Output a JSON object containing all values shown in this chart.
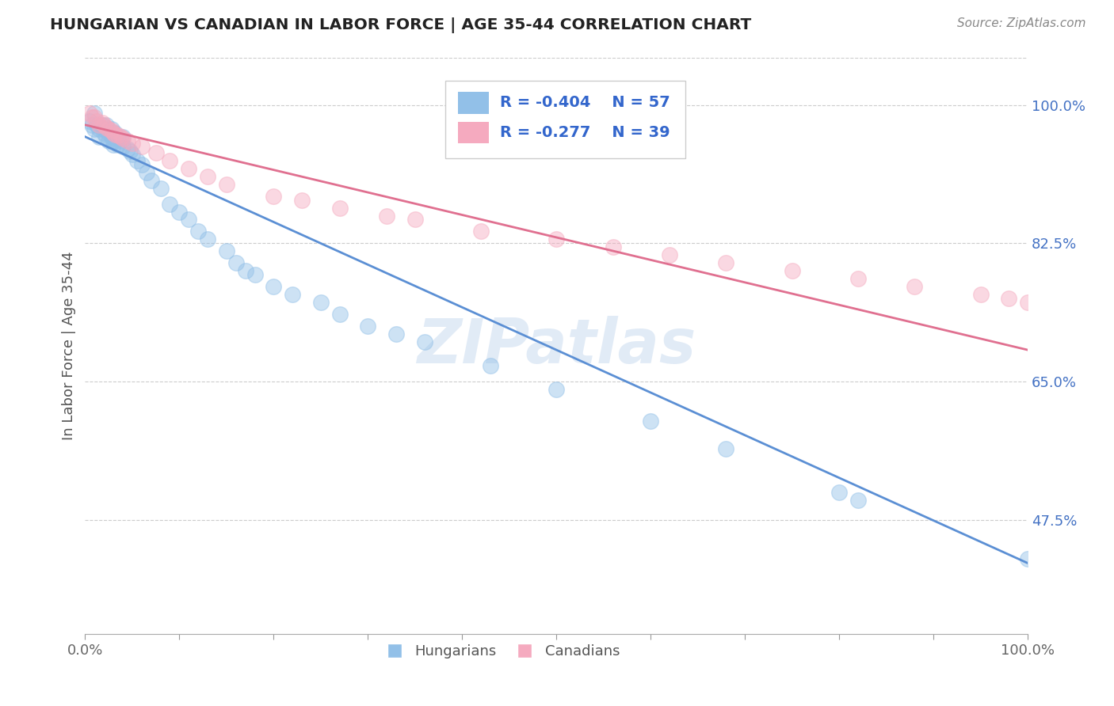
{
  "title": "HUNGARIAN VS CANADIAN IN LABOR FORCE | AGE 35-44 CORRELATION CHART",
  "source_text": "Source: ZipAtlas.com",
  "ylabel": "In Labor Force | Age 35-44",
  "xlim": [
    0.0,
    1.0
  ],
  "ylim": [
    0.33,
    1.06
  ],
  "y_ticks": [
    0.475,
    0.65,
    0.825,
    1.0
  ],
  "y_tick_labels": [
    "47.5%",
    "65.0%",
    "82.5%",
    "100.0%"
  ],
  "x_ticks": [
    0.0,
    0.1,
    0.2,
    0.3,
    0.4,
    0.5,
    0.6,
    0.7,
    0.8,
    0.9,
    1.0
  ],
  "x_tick_labels": [
    "0.0%",
    "",
    "",
    "",
    "",
    "",
    "",
    "",
    "",
    "",
    "100.0%"
  ],
  "legend_r_blue": "R = -0.404",
  "legend_n_blue": "N = 57",
  "legend_r_pink": "R = -0.277",
  "legend_n_pink": "N = 39",
  "blue_color": "#92C0E8",
  "pink_color": "#F5AABF",
  "blue_line_color": "#5B8FD4",
  "pink_line_color": "#E07090",
  "watermark": "ZIPatlas",
  "blue_scatter_x": [
    0.005,
    0.007,
    0.01,
    0.01,
    0.012,
    0.015,
    0.015,
    0.018,
    0.02,
    0.02,
    0.022,
    0.022,
    0.025,
    0.025,
    0.028,
    0.028,
    0.03,
    0.03,
    0.03,
    0.032,
    0.032,
    0.035,
    0.035,
    0.038,
    0.04,
    0.04,
    0.045,
    0.048,
    0.05,
    0.055,
    0.06,
    0.065,
    0.07,
    0.08,
    0.09,
    0.1,
    0.11,
    0.12,
    0.13,
    0.15,
    0.16,
    0.17,
    0.18,
    0.2,
    0.22,
    0.25,
    0.27,
    0.3,
    0.33,
    0.36,
    0.43,
    0.5,
    0.6,
    0.68,
    0.8,
    0.82,
    1.0
  ],
  "blue_scatter_y": [
    0.98,
    0.975,
    0.99,
    0.97,
    0.975,
    0.97,
    0.96,
    0.975,
    0.97,
    0.965,
    0.975,
    0.96,
    0.965,
    0.955,
    0.97,
    0.96,
    0.96,
    0.955,
    0.95,
    0.965,
    0.955,
    0.958,
    0.95,
    0.955,
    0.96,
    0.948,
    0.945,
    0.942,
    0.938,
    0.93,
    0.925,
    0.915,
    0.905,
    0.895,
    0.875,
    0.865,
    0.855,
    0.84,
    0.83,
    0.815,
    0.8,
    0.79,
    0.785,
    0.77,
    0.76,
    0.75,
    0.735,
    0.72,
    0.71,
    0.7,
    0.67,
    0.64,
    0.6,
    0.565,
    0.51,
    0.5,
    0.425
  ],
  "pink_scatter_x": [
    0.005,
    0.007,
    0.01,
    0.012,
    0.015,
    0.018,
    0.02,
    0.022,
    0.025,
    0.028,
    0.03,
    0.032,
    0.035,
    0.038,
    0.04,
    0.045,
    0.05,
    0.06,
    0.075,
    0.09,
    0.11,
    0.13,
    0.15,
    0.2,
    0.23,
    0.27,
    0.32,
    0.35,
    0.42,
    0.5,
    0.56,
    0.62,
    0.68,
    0.75,
    0.82,
    0.88,
    0.95,
    0.98,
    1.0
  ],
  "pink_scatter_y": [
    0.99,
    0.985,
    0.985,
    0.98,
    0.975,
    0.978,
    0.975,
    0.972,
    0.97,
    0.968,
    0.965,
    0.963,
    0.962,
    0.96,
    0.958,
    0.955,
    0.952,
    0.948,
    0.94,
    0.93,
    0.92,
    0.91,
    0.9,
    0.885,
    0.88,
    0.87,
    0.86,
    0.855,
    0.84,
    0.83,
    0.82,
    0.81,
    0.8,
    0.79,
    0.78,
    0.77,
    0.76,
    0.755,
    0.75
  ],
  "blue_trend_y_start": 0.96,
  "blue_trend_y_end": 0.42,
  "pink_trend_y_start": 0.975,
  "pink_trend_y_end": 0.69
}
